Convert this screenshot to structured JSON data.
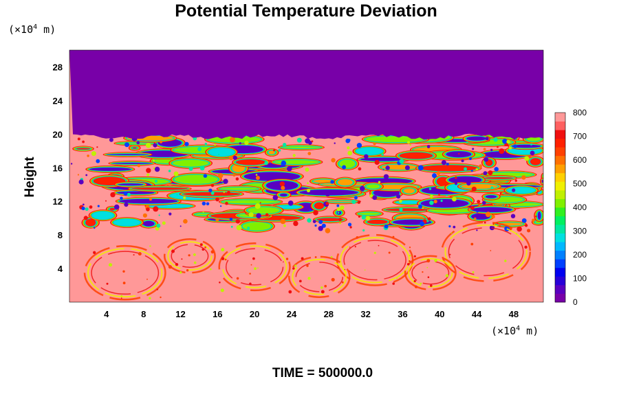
{
  "chart_data": {
    "type": "heatmap",
    "title": "Potential Temperature Deviation",
    "ylabel": "Height",
    "x_unit": "(×10",
    "x_unit_exp": "4",
    "x_unit_tail": " m)",
    "y_unit": "(×10",
    "y_unit_exp": "4",
    "y_unit_tail": " m)",
    "xlim": [
      0,
      51.2
    ],
    "ylim": [
      0,
      30
    ],
    "x_ticks": [
      4,
      8,
      12,
      16,
      20,
      24,
      28,
      32,
      36,
      40,
      44,
      48
    ],
    "y_ticks": [
      4,
      8,
      12,
      16,
      20,
      24,
      28
    ],
    "colorbar": {
      "min": 0,
      "max": 800,
      "ticks": [
        0,
        100,
        200,
        300,
        400,
        500,
        600,
        700,
        800
      ],
      "colors": [
        "#7800a8",
        "#5a00c0",
        "#2800d8",
        "#0000f0",
        "#0040ff",
        "#0080ff",
        "#00b8ff",
        "#00e0e0",
        "#00e8a0",
        "#00f060",
        "#30f020",
        "#80f000",
        "#c0f000",
        "#f0f000",
        "#ffd000",
        "#ffa000",
        "#ff7000",
        "#ff4000",
        "#ff2000",
        "#f01010",
        "#ff6060",
        "#ff9898"
      ]
    },
    "regions": {
      "upper_uniform_value": 0,
      "upper_region_ylim": [
        19.7,
        30
      ],
      "mixed_band_ylim": [
        9,
        19.7
      ],
      "lower_background_value": 800
    },
    "footer": "TIME = 500000.0"
  }
}
